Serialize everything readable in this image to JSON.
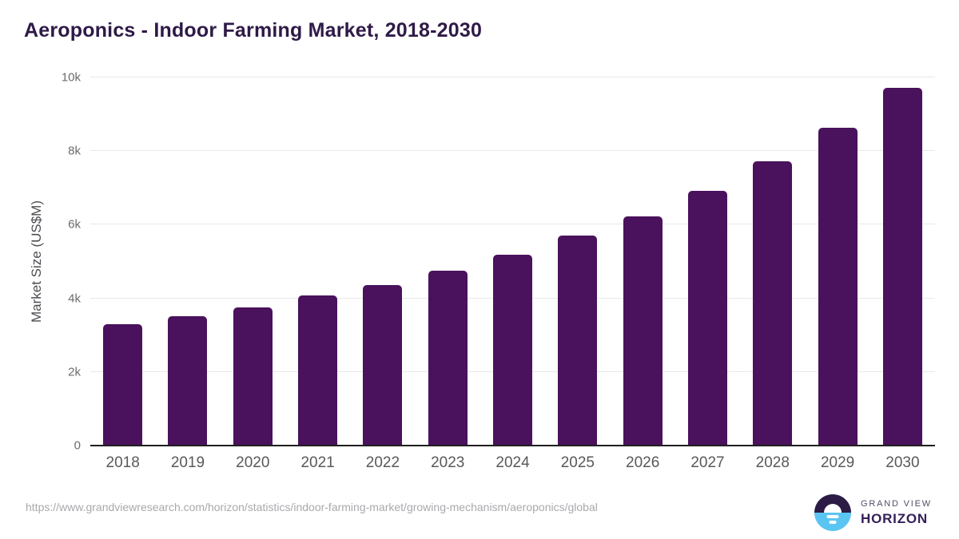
{
  "page": {
    "title": "Aeroponics - Indoor Farming Market, 2018-2030"
  },
  "chart_data": {
    "type": "bar",
    "title": "Aeroponics - Indoor Farming Market, 2018-2030",
    "xlabel": "",
    "ylabel": "Market Size (US$M)",
    "categories": [
      "2018",
      "2019",
      "2020",
      "2021",
      "2022",
      "2023",
      "2024",
      "2025",
      "2026",
      "2027",
      "2028",
      "2029",
      "2030"
    ],
    "values": [
      3300,
      3520,
      3760,
      4070,
      4370,
      4760,
      5190,
      5700,
      6230,
      6930,
      7720,
      8630,
      9720
    ],
    "ylim": [
      0,
      10000
    ],
    "yticks": [
      {
        "value": 0,
        "label": "0"
      },
      {
        "value": 2000,
        "label": "2k"
      },
      {
        "value": 4000,
        "label": "4k"
      },
      {
        "value": 6000,
        "label": "6k"
      },
      {
        "value": 8000,
        "label": "8k"
      },
      {
        "value": 10000,
        "label": "10k"
      }
    ],
    "grid": "horizontal",
    "legend": "none",
    "bar_color": "#4a115c"
  },
  "footer": {
    "source_url": "https://www.grandviewresearch.com/horizon/statistics/indoor-farming-market/growing-mechanism/aeroponics/global",
    "logo": {
      "brand_top": "GRAND VIEW",
      "brand_bottom": "HORIZON"
    }
  },
  "colors": {
    "bar": "#4a115c",
    "title_text": "#2e1a47",
    "axis_text": "#6a6b6e",
    "grid_line": "#e8e8e8",
    "url_text": "#a8a9ac",
    "logo_dark": "#2b1b45",
    "logo_blue": "#5bc5f2"
  }
}
